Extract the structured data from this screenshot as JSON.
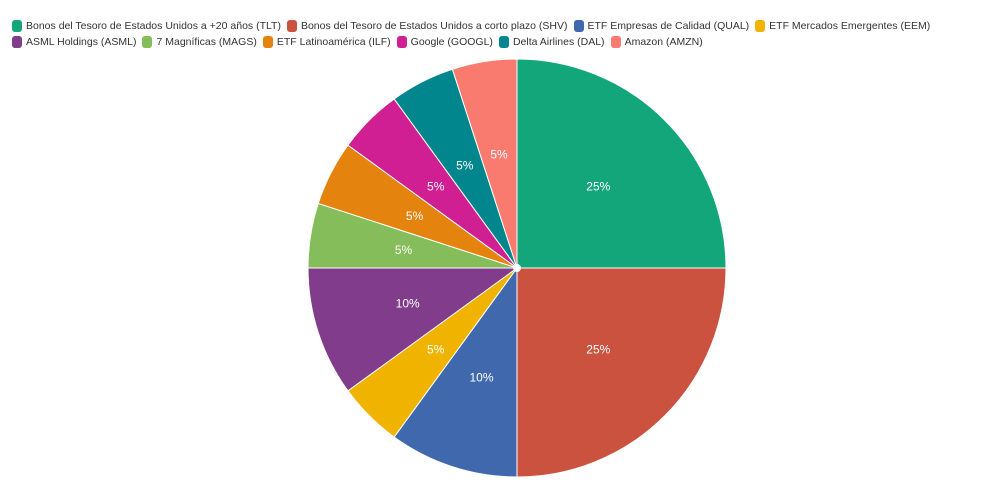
{
  "chart_data": {
    "type": "pie",
    "categories": [
      "Bonos del Tesoro de Estados Unidos a +20 años (TLT)",
      "Bonos del Tesoro de Estados Unidos a corto plazo (SHV)",
      "ETF Empresas de Calidad (QUAL)",
      "ETF Mercados Emergentes (EEM)",
      "ASML Holdings (ASML)",
      "7 Magníficas (MAGS)",
      "ETF Latinoamérica (ILF)",
      "Google (GOOGL)",
      "Delta Airlines (DAL)",
      "Amazon (AMZN)"
    ],
    "values": [
      25,
      25,
      10,
      5,
      10,
      5,
      5,
      5,
      5,
      5
    ],
    "labels": [
      "25%",
      "25%",
      "10%",
      "5%",
      "10%",
      "5%",
      "5%",
      "5%",
      "5%",
      "5%"
    ],
    "colors": [
      "#13a67a",
      "#cc5240",
      "#3f68ad",
      "#f0b400",
      "#813d8c",
      "#86bd5b",
      "#e5830f",
      "#cf1f92",
      "#00868c",
      "#f97b70"
    ],
    "start_angle_deg": 0,
    "direction": "clockwise",
    "legend_position": "top"
  }
}
